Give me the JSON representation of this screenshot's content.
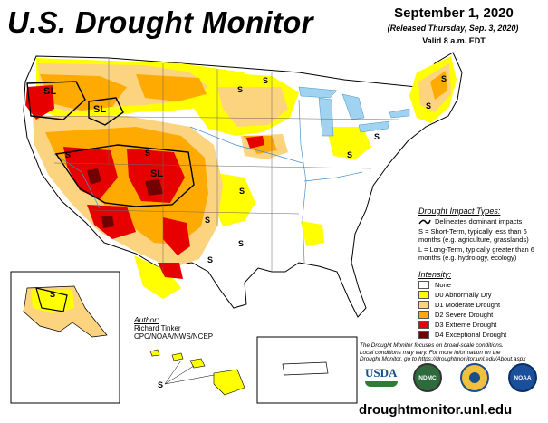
{
  "header": {
    "title": "U.S. Drought Monitor",
    "date": "September 1, 2020",
    "released": "(Released Thursday, Sep. 3, 2020)",
    "valid": "Valid 8 a.m. EDT"
  },
  "map_labels": {
    "s": "S",
    "sl": "SL"
  },
  "impact": {
    "title": "Drought Impact Types:",
    "dominant": "Delineates dominant impacts",
    "short_term": "S = Short-Term, typically less than 6 months (e.g. agriculture, grasslands)",
    "long_term": "L = Long-Term, typically greater than 6 months (e.g. hydrology, ecology)"
  },
  "intensity": {
    "title": "Intensity:",
    "levels": [
      {
        "label": "None",
        "color": "#ffffff"
      },
      {
        "label": "D0 Abnormally Dry",
        "color": "#ffff00"
      },
      {
        "label": "D1 Moderate Drought",
        "color": "#fcd37f"
      },
      {
        "label": "D2 Severe Drought",
        "color": "#ffaa00"
      },
      {
        "label": "D3 Extreme Drought",
        "color": "#e60000"
      },
      {
        "label": "D4 Exceptional Drought",
        "color": "#730000"
      }
    ]
  },
  "author": {
    "title": "Author:",
    "name": "Richard Tinker",
    "org": "CPC/NOAA/NWS/NCEP"
  },
  "note": {
    "line1": "The Drought Monitor focuses on broad-scale conditions.",
    "line2": "Local conditions may vary. For more information on the",
    "line3": "Drought Monitor, go to https://droughtmonitor.unl.edu/About.aspx"
  },
  "logos": {
    "usda": "USDA",
    "ndmc": "NDMC",
    "noaa": "NOAA"
  },
  "url": "droughtmonitor.unl.edu",
  "colors": {
    "none": "#ffffff",
    "d0": "#ffff00",
    "d1": "#fcd37f",
    "d2": "#ffaa00",
    "d3": "#e60000",
    "d4": "#730000",
    "water": "#9fd3f0"
  }
}
